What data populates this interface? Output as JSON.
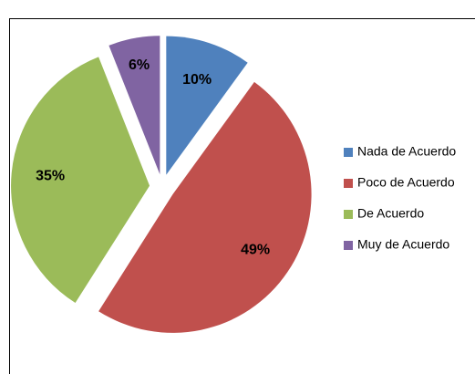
{
  "chart_data": {
    "type": "pie",
    "categories": [
      "Nada de Acuerdo",
      "Poco de Acuerdo",
      "De Acuerdo",
      "Muy de Acuerdo"
    ],
    "values": [
      10,
      49,
      35,
      6
    ],
    "value_labels": [
      "10%",
      "49%",
      "35%",
      "6%"
    ],
    "colors": [
      "#4f81bd",
      "#c0504d",
      "#9bbb59",
      "#8064a2"
    ],
    "exploded": true,
    "legend": "right"
  }
}
